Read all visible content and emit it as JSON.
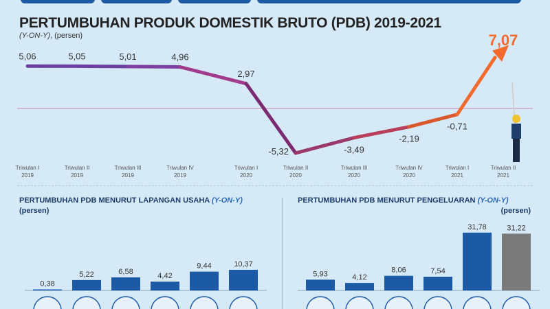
{
  "title": "PERTUMBUHAN PRODUK DOMESTIK BRUTO (PDB) 2019-2021",
  "subtitle_italic": "(Y-ON-Y)",
  "subtitle_rest": ", (persen)",
  "left_section": {
    "title": "PERTUMBUHAN PDB MENURUT LAPANGAN USAHA ",
    "title_italic": "(Y-ON-Y)",
    "unit": "(persen)"
  },
  "right_section": {
    "title": "PERTUMBUHAN PDB MENURUT PENGELUARAN ",
    "title_italic": "(Y-ON-Y)",
    "unit": "(persen)"
  },
  "colors": {
    "accent": "#1d5aa6",
    "highlight": "#f26a2e",
    "gray": "#7a7a7a"
  },
  "chart_data": [
    {
      "type": "line",
      "title": "PERTUMBUHAN PRODUK DOMESTIK BRUTO (PDB) 2019-2021",
      "ylabel": "persen",
      "categories": [
        [
          "Triwulan I",
          "2019"
        ],
        [
          "Triwulan II",
          "2019"
        ],
        [
          "Triwulan III",
          "2019"
        ],
        [
          "Triwulan IV",
          "2019"
        ],
        [
          "Triwulan I",
          "2020"
        ],
        [
          "Triwulan II",
          "2020"
        ],
        [
          "Triwulan III",
          "2020"
        ],
        [
          "Triwulan IV",
          "2020"
        ],
        [
          "Triwulan I",
          "2021"
        ],
        [
          "Triwulan II",
          "2021"
        ]
      ],
      "values": [
        5.06,
        5.05,
        5.01,
        4.96,
        2.97,
        -5.32,
        -3.49,
        -2.19,
        -0.71,
        7.07
      ],
      "labels": [
        "5,06",
        "5,05",
        "5,01",
        "4,96",
        "2,97",
        "-5,32",
        "-3,49",
        "-2,19",
        "-0,71",
        "7,07"
      ]
    },
    {
      "type": "bar",
      "title": "PERTUMBUHAN PDB MENURUT LAPANGAN USAHA (Y-ON-Y)",
      "ylabel": "persen",
      "icons": [
        "agriculture-icon",
        "mining-icon",
        "manufacturing-icon",
        "construction-icon",
        "trade-icon",
        "other-icon"
      ],
      "values": [
        0.38,
        5.22,
        6.58,
        4.42,
        9.44,
        10.37
      ],
      "labels": [
        "0,38",
        "5,22",
        "6,58",
        "4,42",
        "9,44",
        "10,37"
      ]
    },
    {
      "type": "bar",
      "title": "PERTUMBUHAN PDB MENURUT PENGELUARAN (Y-ON-Y)",
      "ylabel": "persen",
      "icons": [
        "household-consumption-icon",
        "nonprofit-institution-icon",
        "government-icon",
        "investment-icon",
        "export-icon",
        "import-icon"
      ],
      "values": [
        5.93,
        4.12,
        8.06,
        7.54,
        31.78,
        31.22
      ],
      "labels": [
        "5,93",
        "4,12",
        "8,06",
        "7,54",
        "31,78",
        "31,22"
      ]
    }
  ]
}
